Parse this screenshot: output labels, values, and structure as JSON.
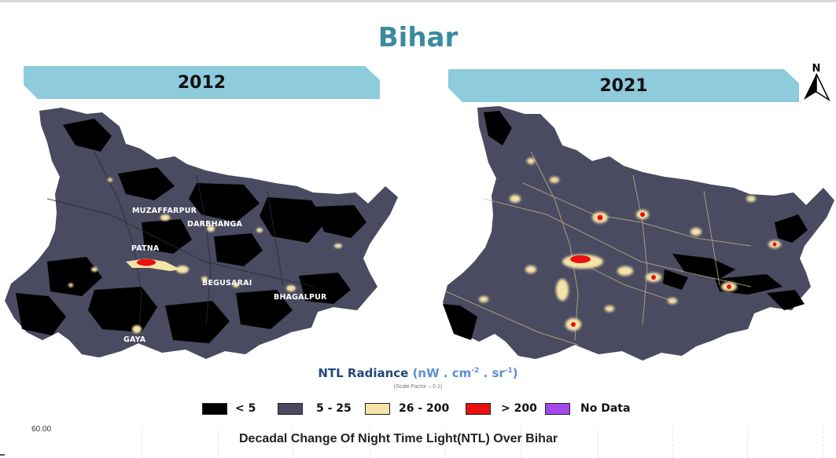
{
  "title": "Bihar",
  "panels": [
    {
      "year": "2012",
      "icon": "district-outline-map-2012"
    },
    {
      "year": "2021",
      "icon": "district-outline-map-2021"
    }
  ],
  "cities": [
    {
      "label": "MUZAFFARPUR"
    },
    {
      "label": "DARBHANGA"
    },
    {
      "label": "PATNA"
    },
    {
      "label": "BEGUSARAI"
    },
    {
      "label": "BHAGALPUR"
    },
    {
      "label": "GAYA"
    }
  ],
  "north_arrow": {
    "label": "N",
    "icon": "north-arrow-icon"
  },
  "legend": {
    "title": "NTL Radiance",
    "unit_base": "(nW . cm",
    "unit_exp1": "-2",
    "unit_mid": " . sr",
    "unit_exp2": "-1",
    "unit_close": ")",
    "subtitle": "(Scale Factor – 0.1)",
    "items": [
      {
        "label": "< 5",
        "color": "#000000"
      },
      {
        "label": "5 - 25",
        "color": "#4a4a60"
      },
      {
        "label": "26 - 200",
        "color": "#f5e4a8"
      },
      {
        "label": "> 200",
        "color": "#e81010"
      },
      {
        "label": "No Data",
        "color": "#a349e8"
      }
    ]
  },
  "colors": {
    "dark": "#000000",
    "medium": "#4a4a60",
    "bright": "#f5e4a8",
    "very_bright": "#e81010",
    "banner": "#8ecbdc",
    "title": "#3a8aa0"
  },
  "lower_chart": {
    "y_tick": "60.00",
    "title": "Decadal Change Of Night Time Light(NTL) Over Bihar"
  }
}
